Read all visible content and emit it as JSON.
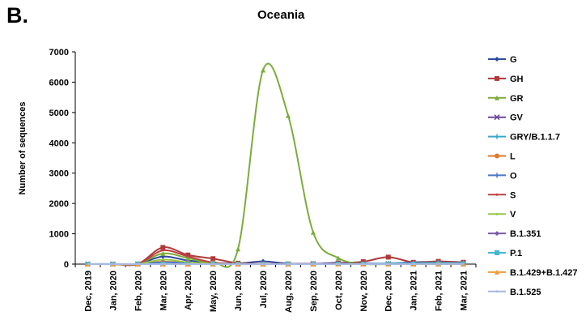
{
  "panel_label": "B.",
  "chart_data": {
    "type": "line",
    "title": "Oceania",
    "xlabel": "",
    "ylabel": "Number of sequences",
    "ylim": [
      0,
      7000
    ],
    "yticks": [
      0,
      1000,
      2000,
      3000,
      4000,
      5000,
      6000,
      7000
    ],
    "grid": false,
    "legend": "right",
    "categories": [
      "Dec, 2019",
      "Jan, 2020",
      "Feb, 2020",
      "Mar, 2020",
      "Apr, 2020",
      "May, 2020",
      "Jun, 2020",
      "Jul, 2020",
      "Aug, 2020",
      "Sep, 2020",
      "Oct, 2020",
      "Nov, 2020",
      "Dec, 2020",
      "Jan, 2021",
      "Feb, 2021",
      "Mar, 2021"
    ],
    "series": [
      {
        "name": "G",
        "color": "#2e4a9e",
        "marker": "diamond",
        "values": [
          0,
          5,
          10,
          250,
          120,
          40,
          20,
          90,
          15,
          10,
          40,
          20,
          20,
          60,
          80,
          60
        ]
      },
      {
        "name": "GH",
        "color": "#b03a3a",
        "marker": "square",
        "values": [
          0,
          0,
          5,
          550,
          300,
          180,
          30,
          10,
          5,
          10,
          30,
          80,
          230,
          60,
          90,
          60
        ]
      },
      {
        "name": "GR",
        "color": "#7cac3c",
        "marker": "triangle",
        "values": [
          0,
          0,
          10,
          350,
          200,
          60,
          500,
          6400,
          4900,
          1050,
          200,
          10,
          0,
          10,
          10,
          10
        ]
      },
      {
        "name": "GV",
        "color": "#6a4a9a",
        "marker": "x",
        "values": [
          0,
          0,
          0,
          0,
          0,
          0,
          0,
          0,
          0,
          10,
          20,
          10,
          10,
          10,
          10,
          10
        ]
      },
      {
        "name": "GRY/B.1.1.7",
        "color": "#3aa6c8",
        "marker": "star",
        "values": [
          0,
          0,
          0,
          0,
          0,
          0,
          0,
          0,
          0,
          0,
          0,
          0,
          20,
          40,
          50,
          40
        ]
      },
      {
        "name": "L",
        "color": "#e07a2a",
        "marker": "circle",
        "values": [
          0,
          0,
          0,
          80,
          40,
          10,
          0,
          0,
          0,
          0,
          0,
          0,
          0,
          0,
          0,
          0
        ]
      },
      {
        "name": "O",
        "color": "#4a78c8",
        "marker": "plus",
        "values": [
          0,
          0,
          0,
          60,
          30,
          10,
          0,
          0,
          0,
          0,
          0,
          0,
          0,
          0,
          0,
          0
        ]
      },
      {
        "name": "S",
        "color": "#c04040",
        "marker": "none",
        "values": [
          0,
          0,
          0,
          450,
          250,
          50,
          0,
          0,
          0,
          0,
          0,
          0,
          0,
          0,
          0,
          0
        ]
      },
      {
        "name": "V",
        "color": "#98c84a",
        "marker": "none",
        "values": [
          0,
          0,
          0,
          150,
          60,
          10,
          0,
          0,
          0,
          0,
          0,
          0,
          0,
          0,
          0,
          0
        ]
      },
      {
        "name": "B.1.351",
        "color": "#7a5aa8",
        "marker": "diamond",
        "values": [
          0,
          0,
          0,
          0,
          0,
          0,
          0,
          0,
          0,
          0,
          0,
          0,
          0,
          10,
          10,
          10
        ]
      },
      {
        "name": "P.1",
        "color": "#44b8d4",
        "marker": "square",
        "values": [
          0,
          0,
          0,
          0,
          0,
          0,
          0,
          0,
          0,
          0,
          0,
          0,
          0,
          0,
          5,
          5
        ]
      },
      {
        "name": "B.1.429+B.1.427",
        "color": "#f39a3a",
        "marker": "triangle",
        "values": [
          0,
          0,
          0,
          0,
          0,
          0,
          0,
          0,
          0,
          0,
          0,
          0,
          0,
          0,
          5,
          5
        ]
      },
      {
        "name": "B.1.525",
        "color": "#a8b8e0",
        "marker": "none",
        "values": [
          0,
          0,
          0,
          0,
          0,
          0,
          0,
          0,
          0,
          0,
          0,
          0,
          0,
          0,
          5,
          5
        ]
      }
    ]
  }
}
